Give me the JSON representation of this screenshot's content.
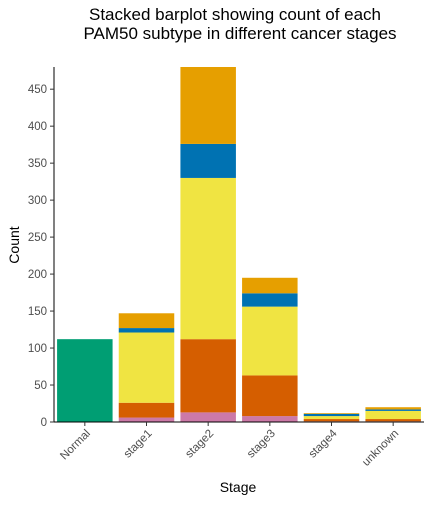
{
  "chart_data": {
    "type": "bar",
    "stacked": true,
    "title_lines": [
      "Stacked barplot showing count of each",
      "PAM50 subtype in different cancer stages"
    ],
    "xlabel": "Stage",
    "ylabel": "Count",
    "categories": [
      "Normal",
      "stage1",
      "stage2",
      "stage3",
      "stage4",
      "unknown"
    ],
    "yticks": [
      0,
      50,
      100,
      150,
      200,
      250,
      300,
      350,
      400,
      450
    ],
    "ylim": [
      0,
      480
    ],
    "grid": false,
    "legend": "none",
    "series": [
      {
        "color": "#009E73",
        "values": [
          112,
          0,
          0,
          0,
          0,
          0
        ]
      },
      {
        "color": "#CC79A7",
        "values": [
          0,
          6,
          13,
          8,
          1,
          1
        ]
      },
      {
        "color": "#D55E00",
        "values": [
          0,
          20,
          99,
          55,
          3,
          3
        ]
      },
      {
        "color": "#F0E442",
        "values": [
          0,
          95,
          218,
          93,
          4,
          11
        ]
      },
      {
        "color": "#0072B2",
        "values": [
          0,
          6,
          46,
          18,
          3,
          2
        ]
      },
      {
        "color": "#E69F00",
        "values": [
          0,
          20,
          104,
          21,
          1,
          3
        ]
      }
    ]
  }
}
